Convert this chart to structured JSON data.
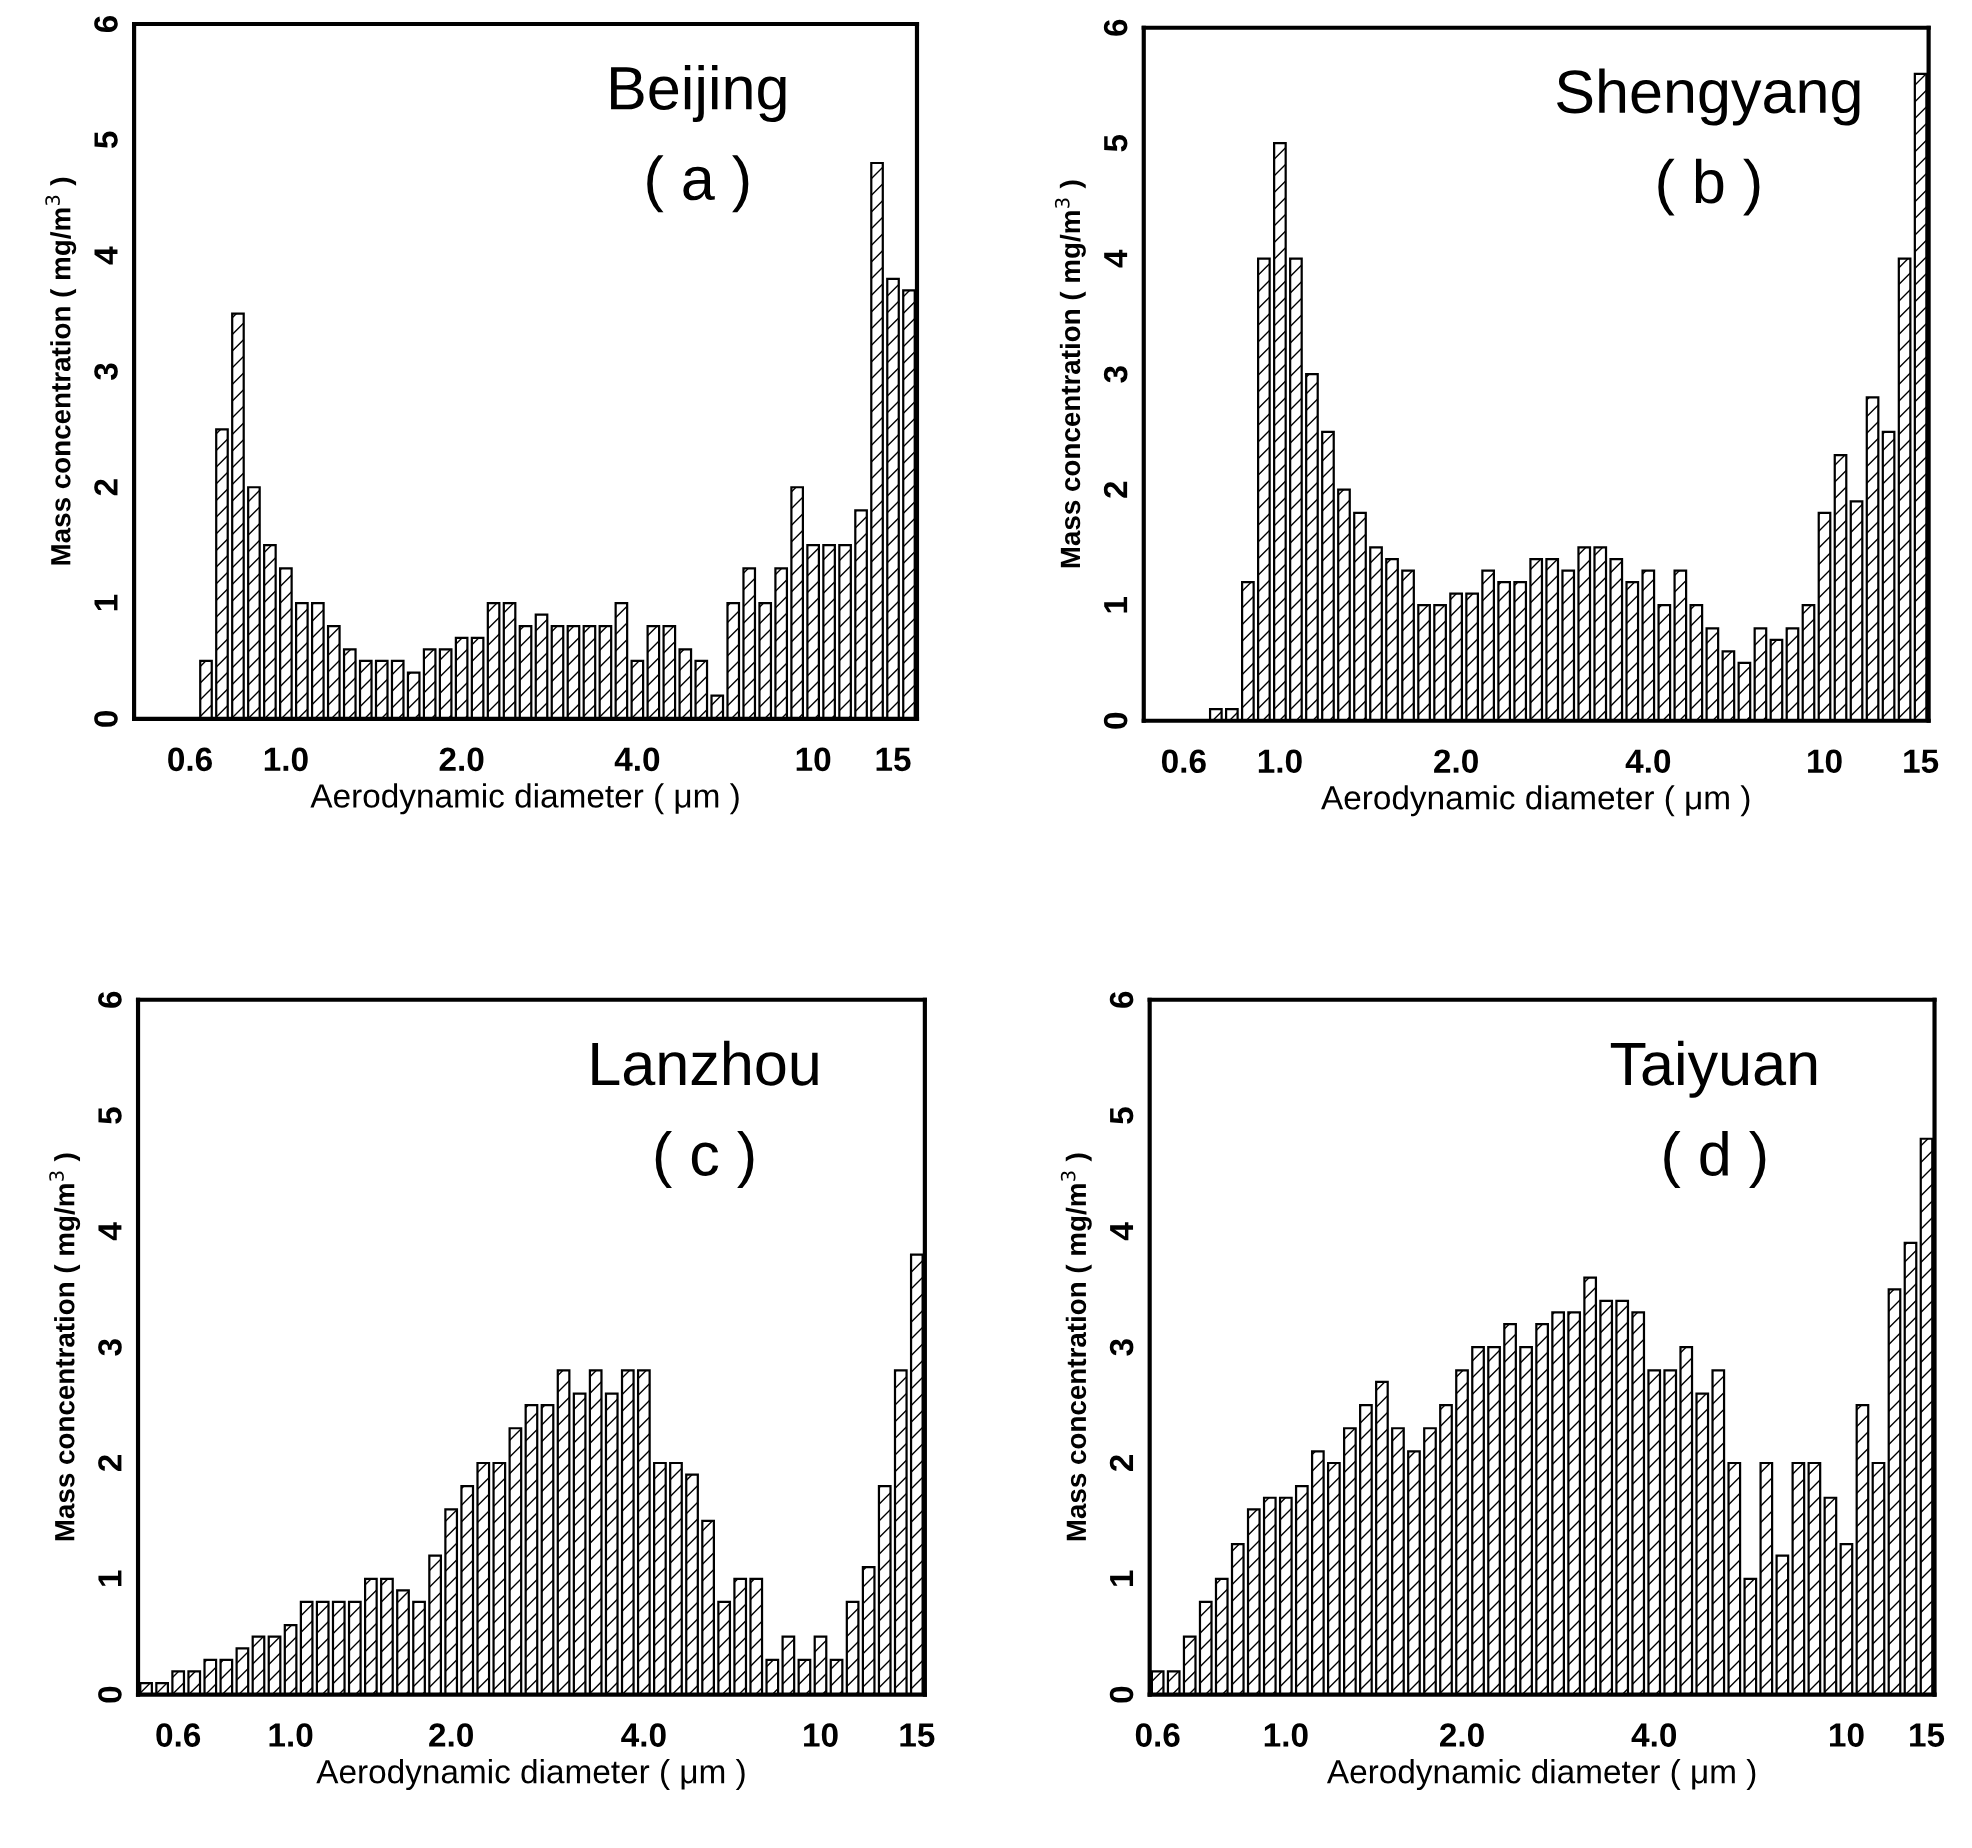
{
  "chart_data": [
    {
      "type": "bar",
      "title": "Beijing",
      "subtitle": "( a )",
      "xlabel": "Aerodynamic diameter ( μm )",
      "ylabel": "Mass concentration ( mg/m$^{3}$ )",
      "ylim": [
        0,
        6
      ],
      "yticks": [
        0,
        1,
        2,
        3,
        4,
        5,
        6
      ],
      "grid": false,
      "categories": [
        null,
        null,
        null,
        "0.6",
        null,
        null,
        null,
        null,
        null,
        "1.0",
        null,
        null,
        null,
        null,
        null,
        null,
        null,
        null,
        null,
        null,
        "2.0",
        null,
        null,
        null,
        null,
        null,
        null,
        null,
        null,
        null,
        null,
        "4.0",
        null,
        null,
        null,
        null,
        null,
        null,
        null,
        null,
        null,
        null,
        "10",
        null,
        null,
        null,
        null,
        "15",
        null
      ],
      "series": [
        {
          "color": "#000000",
          "values": [
            null,
            null,
            null,
            null,
            0.5,
            2.5,
            3.5,
            2.0,
            1.5,
            1.3,
            1.0,
            1.0,
            0.8,
            0.6,
            0.5,
            0.5,
            0.5,
            0.4,
            0.6,
            0.6,
            0.7,
            0.7,
            1.0,
            1.0,
            0.8,
            0.9,
            0.8,
            0.8,
            0.8,
            0.8,
            1.0,
            0.5,
            0.8,
            0.8,
            0.6,
            0.5,
            0.2,
            1.0,
            1.3,
            1.0,
            1.3,
            2.0,
            1.5,
            1.5,
            1.5,
            1.8,
            4.8,
            3.8,
            3.7
          ]
        }
      ]
    },
    {
      "type": "bar",
      "title": "Shengyang",
      "subtitle": "( b )",
      "xlabel": "Aerodynamic diameter ( μm )",
      "ylabel": "Mass concentration ( mg/m$^{3}$ )",
      "ylim": [
        0,
        6
      ],
      "yticks": [
        0,
        1,
        2,
        3,
        4,
        5,
        6
      ],
      "grid": false,
      "categories": [
        null,
        null,
        "0.6",
        null,
        null,
        null,
        null,
        null,
        "1.0",
        null,
        null,
        null,
        null,
        null,
        null,
        null,
        null,
        null,
        null,
        "2.0",
        null,
        null,
        null,
        null,
        null,
        null,
        null,
        null,
        null,
        null,
        null,
        "4.0",
        null,
        null,
        null,
        null,
        null,
        null,
        null,
        null,
        null,
        null,
        "10",
        null,
        null,
        null,
        null,
        null,
        "15"
      ],
      "series": [
        {
          "color": "#000000",
          "values": [
            null,
            null,
            null,
            null,
            0.1,
            0.1,
            1.2,
            4.0,
            5.0,
            4.0,
            3.0,
            2.5,
            2.0,
            1.8,
            1.5,
            1.4,
            1.3,
            1.0,
            1.0,
            1.1,
            1.1,
            1.3,
            1.2,
            1.2,
            1.4,
            1.4,
            1.3,
            1.5,
            1.5,
            1.4,
            1.2,
            1.3,
            1.0,
            1.3,
            1.0,
            0.8,
            0.6,
            0.5,
            0.8,
            0.7,
            0.8,
            1.0,
            1.8,
            2.3,
            1.9,
            2.8,
            2.5,
            4.0,
            5.6
          ]
        }
      ]
    },
    {
      "type": "bar",
      "title": "Lanzhou",
      "subtitle": "( c )",
      "xlabel": "Aerodynamic diameter ( μm )",
      "ylabel": "Mass concentration ( mg/m$^{3}$ )",
      "ylim": [
        0,
        6
      ],
      "yticks": [
        0,
        1,
        2,
        3,
        4,
        5,
        6
      ],
      "grid": false,
      "categories": [
        null,
        null,
        "0.6",
        null,
        null,
        null,
        null,
        null,
        null,
        "1.0",
        null,
        null,
        null,
        null,
        null,
        null,
        null,
        null,
        null,
        "2.0",
        null,
        null,
        null,
        null,
        null,
        null,
        null,
        null,
        null,
        null,
        null,
        "4.0",
        null,
        null,
        null,
        null,
        null,
        null,
        null,
        null,
        null,
        null,
        "10",
        null,
        null,
        null,
        null,
        null,
        "15"
      ],
      "series": [
        {
          "color": "#000000",
          "values": [
            0.1,
            0.1,
            0.2,
            0.2,
            0.3,
            0.3,
            0.4,
            0.5,
            0.5,
            0.6,
            0.8,
            0.8,
            0.8,
            0.8,
            1.0,
            1.0,
            0.9,
            0.8,
            1.2,
            1.6,
            1.8,
            2.0,
            2.0,
            2.3,
            2.5,
            2.5,
            2.8,
            2.6,
            2.8,
            2.6,
            2.8,
            2.8,
            2.0,
            2.0,
            1.9,
            1.5,
            0.8,
            1.0,
            1.0,
            0.3,
            0.5,
            0.3,
            0.5,
            0.3,
            0.8,
            1.1,
            1.8,
            2.8,
            3.8
          ]
        }
      ]
    },
    {
      "type": "bar",
      "title": "Taiyuan",
      "subtitle": "( d )",
      "xlabel": "Aerodynamic diameter ( μm )",
      "ylabel": "Mass concentration ( mg/m$^{3}$ )",
      "ylim": [
        0,
        6
      ],
      "yticks": [
        0,
        1,
        2,
        3,
        4,
        5,
        6
      ],
      "grid": false,
      "categories": [
        "0.6",
        null,
        null,
        null,
        null,
        null,
        null,
        null,
        "1.0",
        null,
        null,
        null,
        null,
        null,
        null,
        null,
        null,
        null,
        null,
        "2.0",
        null,
        null,
        null,
        null,
        null,
        null,
        null,
        null,
        null,
        null,
        null,
        "4.0",
        null,
        null,
        null,
        null,
        null,
        null,
        null,
        null,
        null,
        null,
        null,
        "10",
        null,
        null,
        null,
        null,
        "15"
      ],
      "series": [
        {
          "color": "#000000",
          "values": [
            0.2,
            0.2,
            0.5,
            0.8,
            1.0,
            1.3,
            1.6,
            1.7,
            1.7,
            1.8,
            2.1,
            2.0,
            2.3,
            2.5,
            2.7,
            2.3,
            2.1,
            2.3,
            2.5,
            2.8,
            3.0,
            3.0,
            3.2,
            3.0,
            3.2,
            3.3,
            3.3,
            3.6,
            3.4,
            3.4,
            3.3,
            2.8,
            2.8,
            3.0,
            2.6,
            2.8,
            2.0,
            1.0,
            2.0,
            1.2,
            2.0,
            2.0,
            1.7,
            1.3,
            2.5,
            2.0,
            3.5,
            3.9,
            4.8
          ]
        }
      ]
    }
  ]
}
